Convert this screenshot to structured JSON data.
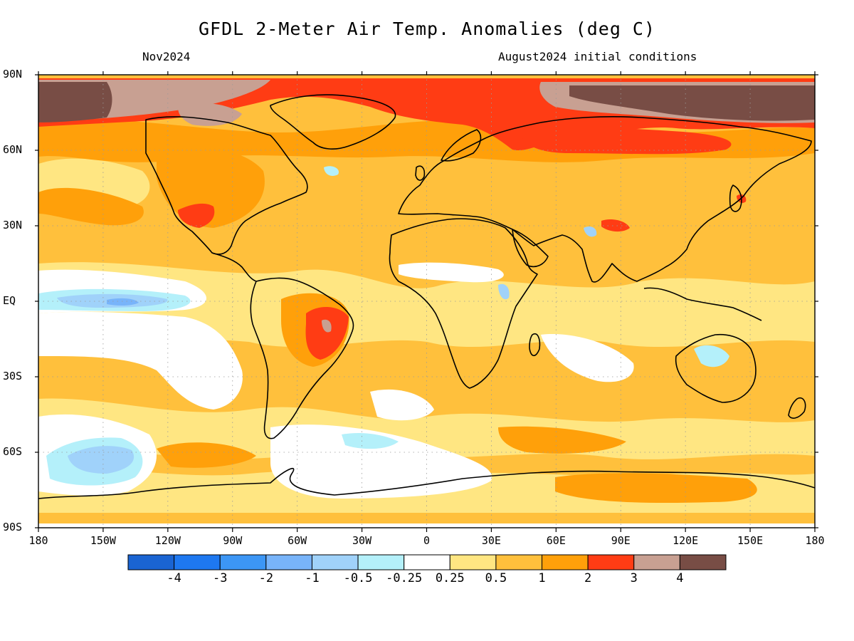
{
  "header": {
    "title": "GFDL 2-Meter Air Temp. Anomalies (deg C)",
    "valid_month": "Nov2024",
    "initial_conditions": "August2024 initial conditions"
  },
  "axes": {
    "lat_labels": [
      "90N",
      "60N",
      "30N",
      "EQ",
      "30S",
      "60S",
      "90S"
    ],
    "lat_values": [
      90,
      60,
      30,
      0,
      -30,
      -60,
      -90
    ],
    "lon_labels": [
      "180",
      "150W",
      "120W",
      "90W",
      "60W",
      "30W",
      "0",
      "30E",
      "60E",
      "90E",
      "120E",
      "150E",
      "180"
    ],
    "lon_values": [
      -180,
      -150,
      -120,
      -90,
      -60,
      -30,
      0,
      30,
      60,
      90,
      120,
      150,
      180
    ]
  },
  "colorbar": {
    "colors": [
      "#1a64d2",
      "#1e78f0",
      "#3c96f5",
      "#78b4fa",
      "#a0d2fa",
      "#b4f0fa",
      "#ffffff",
      "#ffe682",
      "#ffc03c",
      "#ffa00a",
      "#ff3c14",
      "#c8a092",
      "#784d45"
    ],
    "labels": [
      "-4",
      "-3",
      "-2",
      "-1",
      "-0.5",
      "-0.25",
      "0.25",
      "0.5",
      "1",
      "2",
      "3",
      "4"
    ]
  },
  "palette": {
    "land_outline": "#000000",
    "grid": "#9a9a9a"
  }
}
